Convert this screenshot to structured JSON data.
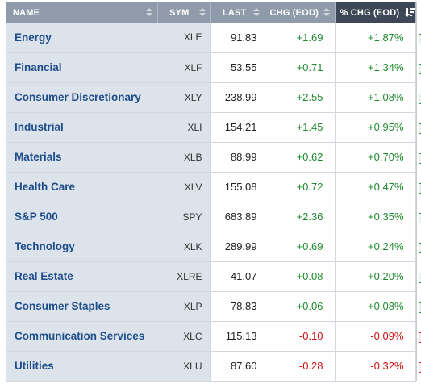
{
  "table": {
    "headers": {
      "name": "NAME",
      "sym": "SYM",
      "last": "LAST",
      "chg": "CHG (EOD)",
      "pct": "% CHG (EOD)"
    },
    "sorted_column": "pct",
    "sort_direction": "descending",
    "colors": {
      "header_bg": "#8f9aaa",
      "sorted_header_bg": "#3d4756",
      "name_col_bg": "#dde3ea",
      "name_text": "#1f4e8c",
      "positive": "#1e8a2e",
      "negative": "#cc1111"
    },
    "rows": [
      {
        "name": "Energy",
        "sym": "XLE",
        "last": "91.83",
        "chg": "+1.69",
        "pct": "+1.87%",
        "dir": "pos"
      },
      {
        "name": "Financial",
        "sym": "XLF",
        "last": "53.55",
        "chg": "+0.71",
        "pct": "+1.34%",
        "dir": "pos"
      },
      {
        "name": "Consumer Discretionary",
        "sym": "XLY",
        "last": "238.99",
        "chg": "+2.55",
        "pct": "+1.08%",
        "dir": "pos"
      },
      {
        "name": "Industrial",
        "sym": "XLI",
        "last": "154.21",
        "chg": "+1.45",
        "pct": "+0.95%",
        "dir": "pos"
      },
      {
        "name": "Materials",
        "sym": "XLB",
        "last": "88.99",
        "chg": "+0.62",
        "pct": "+0.70%",
        "dir": "pos"
      },
      {
        "name": "Health Care",
        "sym": "XLV",
        "last": "155.08",
        "chg": "+0.72",
        "pct": "+0.47%",
        "dir": "pos"
      },
      {
        "name": "S&P 500",
        "sym": "SPY",
        "last": "683.89",
        "chg": "+2.36",
        "pct": "+0.35%",
        "dir": "pos"
      },
      {
        "name": "Technology",
        "sym": "XLK",
        "last": "289.99",
        "chg": "+0.69",
        "pct": "+0.24%",
        "dir": "pos"
      },
      {
        "name": "Real Estate",
        "sym": "XLRE",
        "last": "41.07",
        "chg": "+0.08",
        "pct": "+0.20%",
        "dir": "pos"
      },
      {
        "name": "Consumer Staples",
        "sym": "XLP",
        "last": "78.83",
        "chg": "+0.06",
        "pct": "+0.08%",
        "dir": "pos"
      },
      {
        "name": "Communication Services",
        "sym": "XLC",
        "last": "115.13",
        "chg": "-0.10",
        "pct": "-0.09%",
        "dir": "neg"
      },
      {
        "name": "Utilities",
        "sym": "XLU",
        "last": "87.60",
        "chg": "-0.28",
        "pct": "-0.32%",
        "dir": "neg"
      }
    ]
  }
}
